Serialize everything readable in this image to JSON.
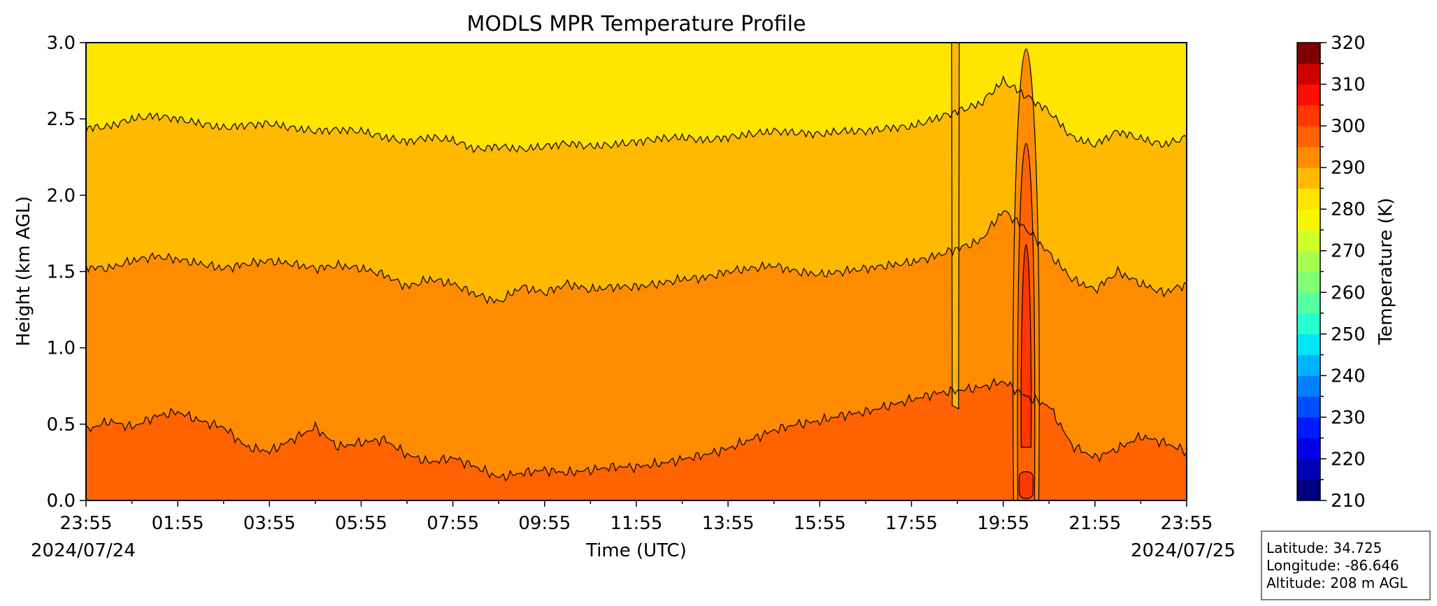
{
  "chart_data": {
    "type": "heatmap",
    "subtype": "filled-contour",
    "title": "MODLS MPR Temperature Profile",
    "xlabel": "Time (UTC)",
    "ylabel": "Height (km AGL)",
    "x_ticks": [
      "23:55",
      "01:55",
      "03:55",
      "05:55",
      "07:55",
      "09:55",
      "11:55",
      "13:55",
      "15:55",
      "17:55",
      "19:55",
      "21:55",
      "23:55"
    ],
    "x_range_hours": [
      0,
      24
    ],
    "start_date": "2024/07/24",
    "end_date": "2024/07/25",
    "y_ticks": [
      "0.0",
      "0.5",
      "1.0",
      "1.5",
      "2.0",
      "2.5",
      "3.0"
    ],
    "ylim": [
      0,
      3
    ],
    "colorbar": {
      "label": "Temperature (K)",
      "range": [
        210,
        320
      ],
      "step": 5,
      "tick_labels": [
        "210",
        "220",
        "230",
        "240",
        "250",
        "260",
        "270",
        "280",
        "290",
        "300",
        "310",
        "320"
      ],
      "colors": [
        "#000080",
        "#0000b3",
        "#0000e6",
        "#0019ff",
        "#004dff",
        "#0080ff",
        "#00b3ff",
        "#00e5f8",
        "#29ffce",
        "#56ffa0",
        "#80ff77",
        "#a6ff51",
        "#ceff29",
        "#f8f500",
        "#ffe500",
        "#ffb900",
        "#ff8c00",
        "#ff6200",
        "#ff3700",
        "#ff0d00",
        "#cd0000",
        "#800000"
      ]
    },
    "bands_K": [
      {
        "range": [
          300,
          305
        ],
        "color": "#ff6200"
      },
      {
        "range": [
          295,
          300
        ],
        "color": "#ff8c00"
      },
      {
        "range": [
          290,
          295
        ],
        "color": "#ffb900"
      },
      {
        "range": [
          285,
          290
        ],
        "color": "#ffe500"
      }
    ],
    "contours": [
      {
        "level_K": 300,
        "hours": [
          0,
          0.5,
          1,
          1.5,
          2,
          2.5,
          3,
          3.5,
          4,
          4.5,
          5,
          5.5,
          6,
          6.5,
          7,
          7.5,
          8,
          8.5,
          9,
          9.5,
          10,
          10.5,
          11,
          11.5,
          12,
          12.5,
          13,
          13.5,
          14,
          14.5,
          15,
          15.5,
          16,
          16.5,
          17,
          17.5,
          18,
          18.5,
          19,
          19.5,
          20,
          20.5,
          21,
          21.5,
          22,
          22.5,
          23,
          23.5,
          24
        ],
        "height_km": [
          0.46,
          0.52,
          0.48,
          0.55,
          0.58,
          0.52,
          0.48,
          0.35,
          0.32,
          0.4,
          0.48,
          0.35,
          0.38,
          0.4,
          0.3,
          0.25,
          0.28,
          0.22,
          0.15,
          0.18,
          0.2,
          0.18,
          0.2,
          0.22,
          0.22,
          0.24,
          0.27,
          0.3,
          0.34,
          0.4,
          0.46,
          0.5,
          0.52,
          0.56,
          0.58,
          0.62,
          0.66,
          0.7,
          0.72,
          0.74,
          0.78,
          0.68,
          0.62,
          0.36,
          0.28,
          0.34,
          0.42,
          0.38,
          0.32
        ]
      },
      {
        "level_K": 295,
        "hours": [
          0,
          0.5,
          1,
          1.5,
          2,
          2.5,
          3,
          3.5,
          4,
          4.5,
          5,
          5.5,
          6,
          6.5,
          7,
          7.5,
          8,
          8.5,
          9,
          9.5,
          10,
          10.5,
          11,
          11.5,
          12,
          12.5,
          13,
          13.5,
          14,
          14.5,
          15,
          15.5,
          16,
          16.5,
          17,
          17.5,
          18,
          18.5,
          19,
          19.5,
          20,
          20.5,
          21,
          21.5,
          22,
          22.5,
          23,
          23.5,
          24
        ],
        "height_km": [
          1.53,
          1.52,
          1.57,
          1.6,
          1.58,
          1.55,
          1.52,
          1.55,
          1.57,
          1.55,
          1.52,
          1.54,
          1.52,
          1.48,
          1.4,
          1.45,
          1.42,
          1.35,
          1.3,
          1.4,
          1.36,
          1.42,
          1.38,
          1.4,
          1.4,
          1.42,
          1.45,
          1.46,
          1.5,
          1.52,
          1.54,
          1.5,
          1.48,
          1.5,
          1.52,
          1.54,
          1.56,
          1.6,
          1.65,
          1.7,
          1.9,
          1.78,
          1.62,
          1.45,
          1.38,
          1.5,
          1.42,
          1.36,
          1.42
        ]
      },
      {
        "level_K": 290,
        "hours": [
          0,
          0.5,
          1,
          1.5,
          2,
          2.5,
          3,
          3.5,
          4,
          4.5,
          5,
          5.5,
          6,
          6.5,
          7,
          7.5,
          8,
          8.5,
          9,
          9.5,
          10,
          10.5,
          11,
          11.5,
          12,
          12.5,
          13,
          13.5,
          14,
          14.5,
          15,
          15.5,
          16,
          16.5,
          17,
          17.5,
          18,
          18.5,
          19,
          19.5,
          20,
          20.5,
          21,
          21.5,
          22,
          22.5,
          23,
          23.5,
          24
        ],
        "height_km": [
          2.44,
          2.45,
          2.5,
          2.52,
          2.5,
          2.47,
          2.44,
          2.46,
          2.47,
          2.44,
          2.42,
          2.43,
          2.42,
          2.38,
          2.35,
          2.38,
          2.36,
          2.3,
          2.32,
          2.3,
          2.32,
          2.34,
          2.32,
          2.33,
          2.35,
          2.37,
          2.38,
          2.36,
          2.38,
          2.4,
          2.42,
          2.41,
          2.4,
          2.42,
          2.42,
          2.44,
          2.45,
          2.5,
          2.55,
          2.6,
          2.75,
          2.65,
          2.55,
          2.38,
          2.33,
          2.42,
          2.37,
          2.33,
          2.38
        ]
      }
    ],
    "feature": {
      "description_hours": [
        20.25,
        20.75
      ],
      "peak_temp_K": 305,
      "cool_column_hour": 18.95
    }
  },
  "info_box": {
    "latitude": "Latitude: 34.725",
    "longitude": "Longitude: -86.646",
    "altitude": "Altitude: 208 m AGL"
  }
}
